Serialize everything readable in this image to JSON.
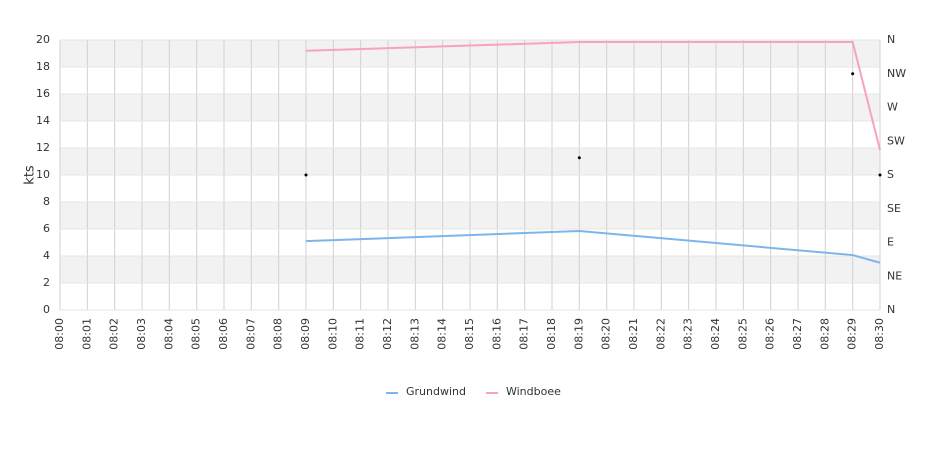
{
  "chart_data": {
    "type": "line",
    "y_label": "kts",
    "categories": [
      "08:00",
      "08:01",
      "08:02",
      "08:03",
      "08:04",
      "08:05",
      "08:06",
      "08:07",
      "08:08",
      "08:09",
      "08:10",
      "08:11",
      "08:12",
      "08:13",
      "08:14",
      "08:15",
      "08:16",
      "08:17",
      "08:18",
      "08:19",
      "08:20",
      "08:21",
      "08:22",
      "08:23",
      "08:24",
      "08:25",
      "08:26",
      "08:27",
      "08:28",
      "08:29",
      "08:30"
    ],
    "ylim": [
      0,
      20
    ],
    "yticks": [
      0,
      2,
      4,
      6,
      8,
      10,
      12,
      14,
      16,
      18,
      20
    ],
    "y2lim": [
      0,
      360
    ],
    "y2ticks": [
      {
        "value": 0,
        "label": "N"
      },
      {
        "value": 45,
        "label": "NE"
      },
      {
        "value": 90,
        "label": "E"
      },
      {
        "value": 135,
        "label": "SE"
      },
      {
        "value": 180,
        "label": "S"
      },
      {
        "value": 225,
        "label": "SW"
      },
      {
        "value": 270,
        "label": "W"
      },
      {
        "value": 315,
        "label": "NW"
      },
      {
        "value": 360,
        "label": "N"
      }
    ],
    "grid": true,
    "series": [
      {
        "name": "Grundwind",
        "color": "#7cb5ec",
        "x": [
          "08:09",
          "08:19",
          "08:29",
          "08:30"
        ],
        "values": [
          5.1,
          5.85,
          4.07,
          3.5
        ]
      },
      {
        "name": "Windboee",
        "color": "#f7a1c4",
        "x": [
          "08:09",
          "08:19",
          "08:29",
          "08:30"
        ],
        "values": [
          19.2,
          19.85,
          19.85,
          11.85
        ]
      }
    ],
    "direction": {
      "color": "#000000",
      "axis": "y2",
      "x": [
        "08:09",
        "08:19",
        "08:29",
        "08:30"
      ],
      "values": [
        180,
        203,
        315,
        180
      ]
    }
  }
}
